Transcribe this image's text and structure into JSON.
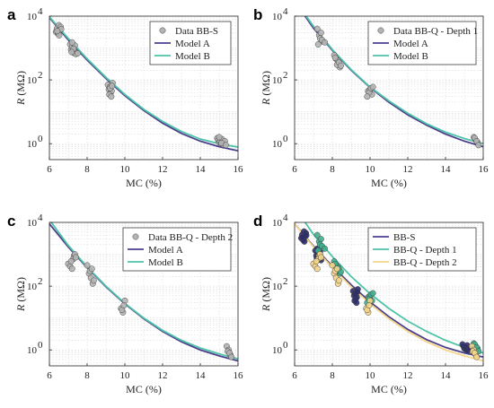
{
  "figure": {
    "letters": [
      "a",
      "b",
      "c",
      "d"
    ]
  },
  "colors": {
    "model_a": "#4b3f8c",
    "model_b": "#4fc3a8",
    "bbs_point": "#2e2d6e",
    "depth1_point": "#3fb08f",
    "depth2_point": "#f5d68a"
  },
  "chart_data": [
    {
      "type": "scatter",
      "letter": "a",
      "xlabel": "MC (%)",
      "ylabel": "R (MΩ)",
      "xlim": [
        6,
        16
      ],
      "ylim_log10": [
        -0.5,
        4
      ],
      "log_y": true,
      "xticks": [
        "6",
        "8",
        "10",
        "12",
        "14",
        "16"
      ],
      "yticks": [
        {
          "exp": 0,
          "label": "10^0"
        },
        {
          "exp": 2,
          "label": "10^2"
        },
        {
          "exp": 4,
          "label": "10^4"
        }
      ],
      "grid": true,
      "legend_position": "top-right",
      "series": [
        {
          "name": "Data BB-S",
          "kind": "points",
          "color": "#b4b4b4",
          "x": [
            6.35,
            6.4,
            6.45,
            6.5,
            6.55,
            6.6,
            6.48,
            6.52,
            6.62,
            6.42,
            7.1,
            7.15,
            7.2,
            7.25,
            7.3,
            7.35,
            7.4,
            7.2,
            7.28,
            7.18,
            7.5,
            9.1,
            9.15,
            9.2,
            9.25,
            9.3,
            9.35,
            9.22,
            9.18,
            9.32,
            9.28,
            14.9,
            14.95,
            15.0,
            15.05,
            15.1,
            15.15,
            15.2,
            15.25,
            15.3,
            15.0,
            15.12,
            15.35
          ],
          "y": [
            3200,
            4100,
            2800,
            5200,
            3600,
            4600,
            3000,
            2500,
            3900,
            3400,
            1300,
            900,
            1100,
            800,
            700,
            1200,
            650,
            1500,
            950,
            750,
            680,
            70,
            50,
            60,
            40,
            45,
            80,
            55,
            35,
            65,
            30,
            1.5,
            1.3,
            1.1,
            1.2,
            1.0,
            1.4,
            0.95,
            1.1,
            1.2,
            1.6,
            1.05,
            0.9
          ]
        },
        {
          "name": "Model A",
          "kind": "curve",
          "color": "#4b3f8c",
          "x": [
            6,
            7,
            8,
            9,
            10,
            11,
            12,
            13,
            14,
            15,
            16
          ],
          "y": [
            9000,
            1800,
            420,
            110,
            32,
            11,
            4.4,
            2.1,
            1.2,
            0.8,
            0.6
          ]
        },
        {
          "name": "Model B",
          "kind": "curve",
          "color": "#4fc3a8",
          "x": [
            6,
            7,
            8,
            9,
            10,
            11,
            12,
            13,
            14,
            15,
            16
          ],
          "y": [
            9500,
            2000,
            460,
            120,
            35,
            12,
            5,
            2.4,
            1.4,
            1.0,
            0.78
          ]
        }
      ]
    },
    {
      "type": "scatter",
      "letter": "b",
      "xlabel": "MC (%)",
      "ylabel": "R (MΩ)",
      "xlim": [
        6,
        16
      ],
      "ylim_log10": [
        -0.5,
        4
      ],
      "log_y": true,
      "xticks": [
        "6",
        "8",
        "10",
        "12",
        "14",
        "16"
      ],
      "yticks": [
        {
          "exp": 0,
          "label": "10^0"
        },
        {
          "exp": 2,
          "label": "10^2"
        },
        {
          "exp": 4,
          "label": "10^4"
        }
      ],
      "grid": true,
      "legend_position": "top-right",
      "series": [
        {
          "name": "Data BB-Q - Depth 1",
          "kind": "points",
          "color": "#b4b4b4",
          "x": [
            7.2,
            7.3,
            7.4,
            7.5,
            7.35,
            7.25,
            7.45,
            7.6,
            8.1,
            8.2,
            8.3,
            8.4,
            8.25,
            8.35,
            8.15,
            8.45,
            9.9,
            10.0,
            10.1,
            9.95,
            10.05,
            9.85,
            10.15,
            15.5,
            15.6,
            15.7,
            15.55,
            15.65,
            15.75
          ],
          "y": [
            4000,
            2500,
            3000,
            1600,
            2000,
            1300,
            1800,
            1500,
            600,
            450,
            400,
            250,
            300,
            350,
            500,
            280,
            45,
            50,
            35,
            40,
            55,
            30,
            60,
            1.6,
            1.3,
            1.1,
            1.5,
            1.2,
            0.9
          ]
        },
        {
          "name": "Model A",
          "kind": "curve",
          "color": "#4b3f8c",
          "x": [
            6,
            7,
            8,
            9,
            10,
            11,
            12,
            13,
            14,
            15,
            16
          ],
          "y": [
            30000,
            4200,
            850,
            200,
            58,
            20,
            8,
            3.8,
            2.0,
            1.2,
            0.8
          ]
        },
        {
          "name": "Model B",
          "kind": "curve",
          "color": "#4fc3a8",
          "x": [
            6,
            7,
            8,
            9,
            10,
            11,
            12,
            13,
            14,
            15,
            16
          ],
          "y": [
            32000,
            4800,
            900,
            210,
            60,
            22,
            9,
            4.2,
            2.3,
            1.45,
            1.0
          ]
        }
      ]
    },
    {
      "type": "scatter",
      "letter": "c",
      "xlabel": "MC (%)",
      "ylabel": "R (MΩ)",
      "xlim": [
        6,
        16
      ],
      "ylim_log10": [
        -0.5,
        4
      ],
      "log_y": true,
      "xticks": [
        "6",
        "8",
        "10",
        "12",
        "14",
        "16"
      ],
      "yticks": [
        {
          "exp": 0,
          "label": "10^0"
        },
        {
          "exp": 2,
          "label": "10^2"
        },
        {
          "exp": 4,
          "label": "10^4"
        }
      ],
      "grid": true,
      "legend_position": "top-right",
      "series": [
        {
          "name": "Data BB-Q - Depth 2",
          "kind": "points",
          "color": "#b4b4b4",
          "x": [
            7.0,
            7.1,
            7.2,
            7.3,
            7.35,
            7.25,
            7.15,
            7.4,
            8.0,
            8.1,
            8.2,
            8.3,
            8.15,
            8.25,
            8.35,
            9.8,
            9.9,
            10.0,
            9.85,
            9.95,
            15.4,
            15.5,
            15.6,
            15.45,
            15.55,
            15.65
          ],
          "y": [
            500,
            420,
            350,
            900,
            1000,
            700,
            600,
            800,
            450,
            250,
            180,
            120,
            300,
            350,
            150,
            20,
            15,
            35,
            18,
            25,
            1.3,
            1.0,
            0.7,
            0.9,
            0.8,
            0.6
          ]
        },
        {
          "name": "Model A",
          "kind": "curve",
          "color": "#4b3f8c",
          "x": [
            6,
            7,
            8,
            9,
            10,
            11,
            12,
            13,
            14,
            15,
            16
          ],
          "y": [
            9000,
            1700,
            380,
            95,
            28,
            9.5,
            3.8,
            1.8,
            1.0,
            0.65,
            0.45
          ]
        },
        {
          "name": "Model B",
          "kind": "curve",
          "color": "#4fc3a8",
          "x": [
            6,
            7,
            8,
            9,
            10,
            11,
            12,
            13,
            14,
            15,
            16
          ],
          "y": [
            12000,
            1900,
            400,
            100,
            29,
            10,
            4.1,
            2.0,
            1.15,
            0.75,
            0.52
          ]
        }
      ]
    },
    {
      "type": "scatter",
      "letter": "d",
      "xlabel": "MC (%)",
      "ylabel": "R (MΩ)",
      "xlim": [
        6,
        16
      ],
      "ylim_log10": [
        -0.5,
        4
      ],
      "log_y": true,
      "xticks": [
        "6",
        "8",
        "10",
        "12",
        "14",
        "16"
      ],
      "yticks": [
        {
          "exp": 0,
          "label": "10^0"
        },
        {
          "exp": 2,
          "label": "10^2"
        },
        {
          "exp": 4,
          "label": "10^4"
        }
      ],
      "grid": true,
      "legend_position": "top-right",
      "series": [
        {
          "name": "BB-S",
          "kind": "curve",
          "color": "#4b3f8c",
          "x": [
            6,
            7,
            8,
            9,
            10,
            11,
            12,
            13,
            14,
            15,
            16
          ],
          "y": [
            9000,
            1800,
            420,
            110,
            32,
            11,
            4.4,
            2.1,
            1.2,
            0.8,
            0.6
          ]
        },
        {
          "name": "BB-Q - Depth 1",
          "kind": "curve",
          "color": "#4fc3a8",
          "x": [
            6,
            7,
            8,
            9,
            10,
            11,
            12,
            13,
            14,
            15,
            16
          ],
          "y": [
            30000,
            4200,
            850,
            200,
            58,
            20,
            8,
            3.8,
            2.0,
            1.2,
            0.8
          ]
        },
        {
          "name": "BB-Q - Depth 2",
          "kind": "curve",
          "color": "#f5d68a",
          "x": [
            6,
            7,
            8,
            9,
            10,
            11,
            12,
            13,
            14,
            15,
            16
          ],
          "y": [
            9000,
            1700,
            380,
            95,
            28,
            9.5,
            3.8,
            1.8,
            1.0,
            0.65,
            0.45
          ]
        },
        {
          "name": "",
          "kind": "points",
          "color": "#2e2d6e",
          "x": [
            6.35,
            6.4,
            6.45,
            6.5,
            6.55,
            6.6,
            6.48,
            6.52,
            6.62,
            6.42,
            7.1,
            7.15,
            7.2,
            7.25,
            7.3,
            7.35,
            7.4,
            7.2,
            7.28,
            7.18,
            9.1,
            9.15,
            9.2,
            9.25,
            9.3,
            9.35,
            9.22,
            9.18,
            9.32,
            9.28,
            14.9,
            14.95,
            15.0,
            15.05,
            15.1,
            15.15,
            15.2,
            15.25,
            15.3
          ],
          "y": [
            3200,
            4100,
            2800,
            5200,
            3600,
            4600,
            3000,
            2500,
            3900,
            3400,
            1300,
            900,
            1100,
            800,
            700,
            1200,
            650,
            1500,
            950,
            750,
            70,
            50,
            60,
            40,
            45,
            80,
            55,
            35,
            65,
            30,
            1.5,
            1.3,
            1.1,
            1.2,
            1.0,
            1.4,
            0.95,
            1.1,
            1.2
          ]
        },
        {
          "name": "",
          "kind": "points",
          "color": "#3fb08f",
          "x": [
            7.2,
            7.3,
            7.4,
            7.5,
            7.35,
            7.25,
            7.45,
            7.6,
            8.1,
            8.2,
            8.3,
            8.4,
            8.25,
            8.35,
            8.15,
            8.45,
            9.9,
            10.0,
            10.1,
            9.95,
            10.05,
            9.85,
            10.15,
            15.5,
            15.6,
            15.7,
            15.55,
            15.65,
            15.75
          ],
          "y": [
            4000,
            2500,
            3000,
            1600,
            2000,
            1300,
            1800,
            1500,
            600,
            450,
            400,
            250,
            300,
            350,
            500,
            280,
            45,
            50,
            35,
            40,
            55,
            30,
            60,
            1.6,
            1.3,
            1.1,
            1.5,
            1.2,
            0.9
          ]
        },
        {
          "name": "",
          "kind": "points",
          "color": "#f5d68a",
          "x": [
            7.0,
            7.1,
            7.2,
            7.3,
            7.35,
            7.25,
            7.15,
            7.4,
            8.0,
            8.1,
            8.2,
            8.3,
            8.15,
            8.25,
            8.35,
            9.8,
            9.9,
            10.0,
            9.85,
            9.95,
            15.4,
            15.5,
            15.6,
            15.45,
            15.55,
            15.65
          ],
          "y": [
            500,
            420,
            350,
            900,
            1000,
            700,
            600,
            800,
            450,
            250,
            180,
            120,
            300,
            350,
            150,
            20,
            15,
            35,
            18,
            25,
            1.3,
            1.0,
            0.7,
            0.9,
            0.8,
            0.6
          ]
        }
      ]
    }
  ]
}
